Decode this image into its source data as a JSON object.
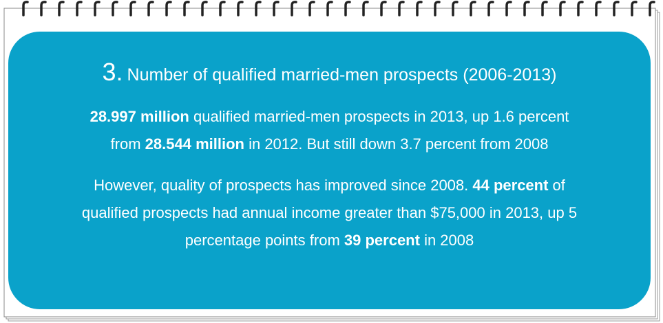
{
  "title": {
    "number": "3.",
    "text": "Number of qualified married-men prospects (2006-2013)"
  },
  "paragraphs": [
    {
      "lines": [
        [
          {
            "text": "28.997 million",
            "bold": true
          },
          {
            "text": " qualified married-men prospects in 2013, up 1.6 percent",
            "bold": false
          }
        ],
        [
          {
            "text": "from ",
            "bold": false
          },
          {
            "text": "28.544 million",
            "bold": true
          },
          {
            "text": " in 2012. But still down 3.7 percent from 2008",
            "bold": false
          }
        ]
      ]
    },
    {
      "lines": [
        [
          {
            "text": "However, quality of prospects has improved since 2008. ",
            "bold": false
          },
          {
            "text": "44 percent",
            "bold": true
          },
          {
            "text": " of",
            "bold": false
          }
        ],
        [
          {
            "text": "qualified prospects had annual income greater than $75,000 in 2013, up 5",
            "bold": false
          }
        ],
        [
          {
            "text": "percentage points from ",
            "bold": false
          },
          {
            "text": "39 percent",
            "bold": true
          },
          {
            "text": " in 2008",
            "bold": false
          }
        ]
      ]
    }
  ]
}
